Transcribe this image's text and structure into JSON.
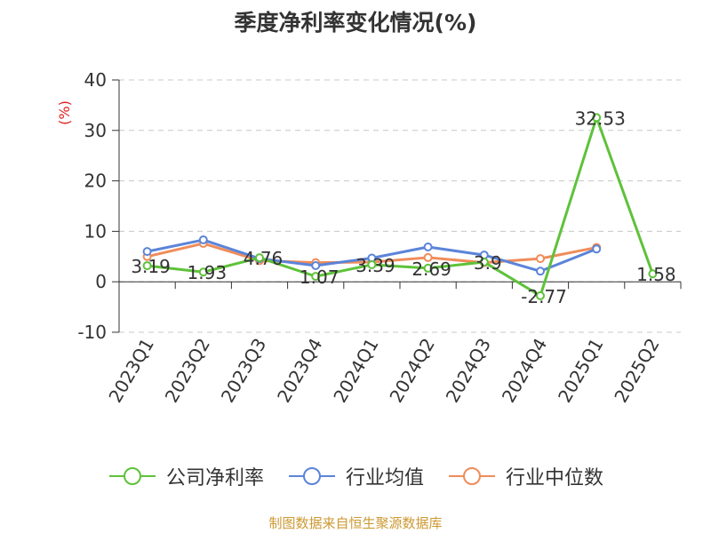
{
  "chart_data": {
    "type": "line",
    "title": "季度净利率变化情况(%)",
    "ylabel": "(%)",
    "xlabel": "",
    "categories": [
      "2023Q1",
      "2023Q2",
      "2023Q3",
      "2023Q4",
      "2024Q1",
      "2024Q2",
      "2024Q3",
      "2024Q4",
      "2025Q1",
      "2025Q2"
    ],
    "ylim": [
      -10,
      40
    ],
    "yticks": [
      -10,
      0,
      10,
      20,
      30,
      40
    ],
    "grid": true,
    "legend_position": "bottom",
    "series": [
      {
        "name": "公司净利率",
        "color": "#5ec23a",
        "values": [
          3.19,
          1.93,
          4.76,
          1.07,
          3.39,
          2.69,
          3.9,
          -2.77,
          32.53,
          1.58
        ],
        "labels": [
          "3.19",
          "1.93",
          "4.76",
          "1.07",
          "3.39",
          "2.69",
          "3.9",
          "-2.77",
          "32.53",
          "1.58"
        ]
      },
      {
        "name": "行业均值",
        "color": "#5b84d9",
        "values": [
          6.0,
          8.3,
          4.6,
          3.2,
          4.7,
          6.9,
          5.3,
          2.1,
          6.5,
          null
        ]
      },
      {
        "name": "行业中位数",
        "color": "#f08c5a",
        "values": [
          5.0,
          7.6,
          4.2,
          3.8,
          3.9,
          4.8,
          3.8,
          4.6,
          6.8,
          null
        ]
      }
    ]
  },
  "source_text": "制图数据来自恒生聚源数据库"
}
